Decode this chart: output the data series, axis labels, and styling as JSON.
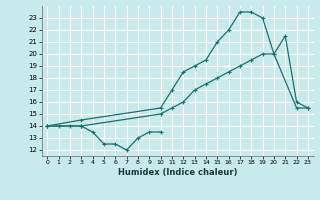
{
  "xlabel": "Humidex (Indice chaleur)",
  "bg_color": "#c8eaea",
  "grid_color": "#ffffff",
  "line_color": "#1a7070",
  "xlim": [
    -0.5,
    23.5
  ],
  "ylim": [
    11.5,
    24
  ],
  "xticks": [
    0,
    1,
    2,
    3,
    4,
    5,
    6,
    7,
    8,
    9,
    10,
    11,
    12,
    13,
    14,
    15,
    16,
    17,
    18,
    19,
    20,
    21,
    22,
    23
  ],
  "yticks": [
    12,
    13,
    14,
    15,
    16,
    17,
    18,
    19,
    20,
    21,
    22,
    23
  ],
  "line1_x": [
    0,
    1,
    2,
    3,
    4,
    5,
    6,
    7,
    8,
    9,
    10
  ],
  "line1_y": [
    14,
    14,
    14,
    14,
    13.5,
    12.5,
    12.5,
    12,
    13,
    13.5,
    13.5
  ],
  "line2_x": [
    0,
    3,
    10,
    11,
    12,
    13,
    14,
    15,
    16,
    17,
    18,
    19,
    20,
    22,
    23
  ],
  "line2_y": [
    14,
    14,
    15,
    15.5,
    16,
    17,
    17.5,
    18,
    18.5,
    19,
    19.5,
    20,
    20,
    15.5,
    15.5
  ],
  "line3_x": [
    0,
    3,
    10,
    11,
    12,
    13,
    14,
    15,
    16,
    17,
    18,
    19,
    20,
    21,
    22,
    23
  ],
  "line3_y": [
    14,
    14.5,
    15.5,
    17,
    18.5,
    19,
    19.5,
    21,
    22,
    23.5,
    23.5,
    23,
    20,
    21.5,
    16,
    15.5
  ]
}
